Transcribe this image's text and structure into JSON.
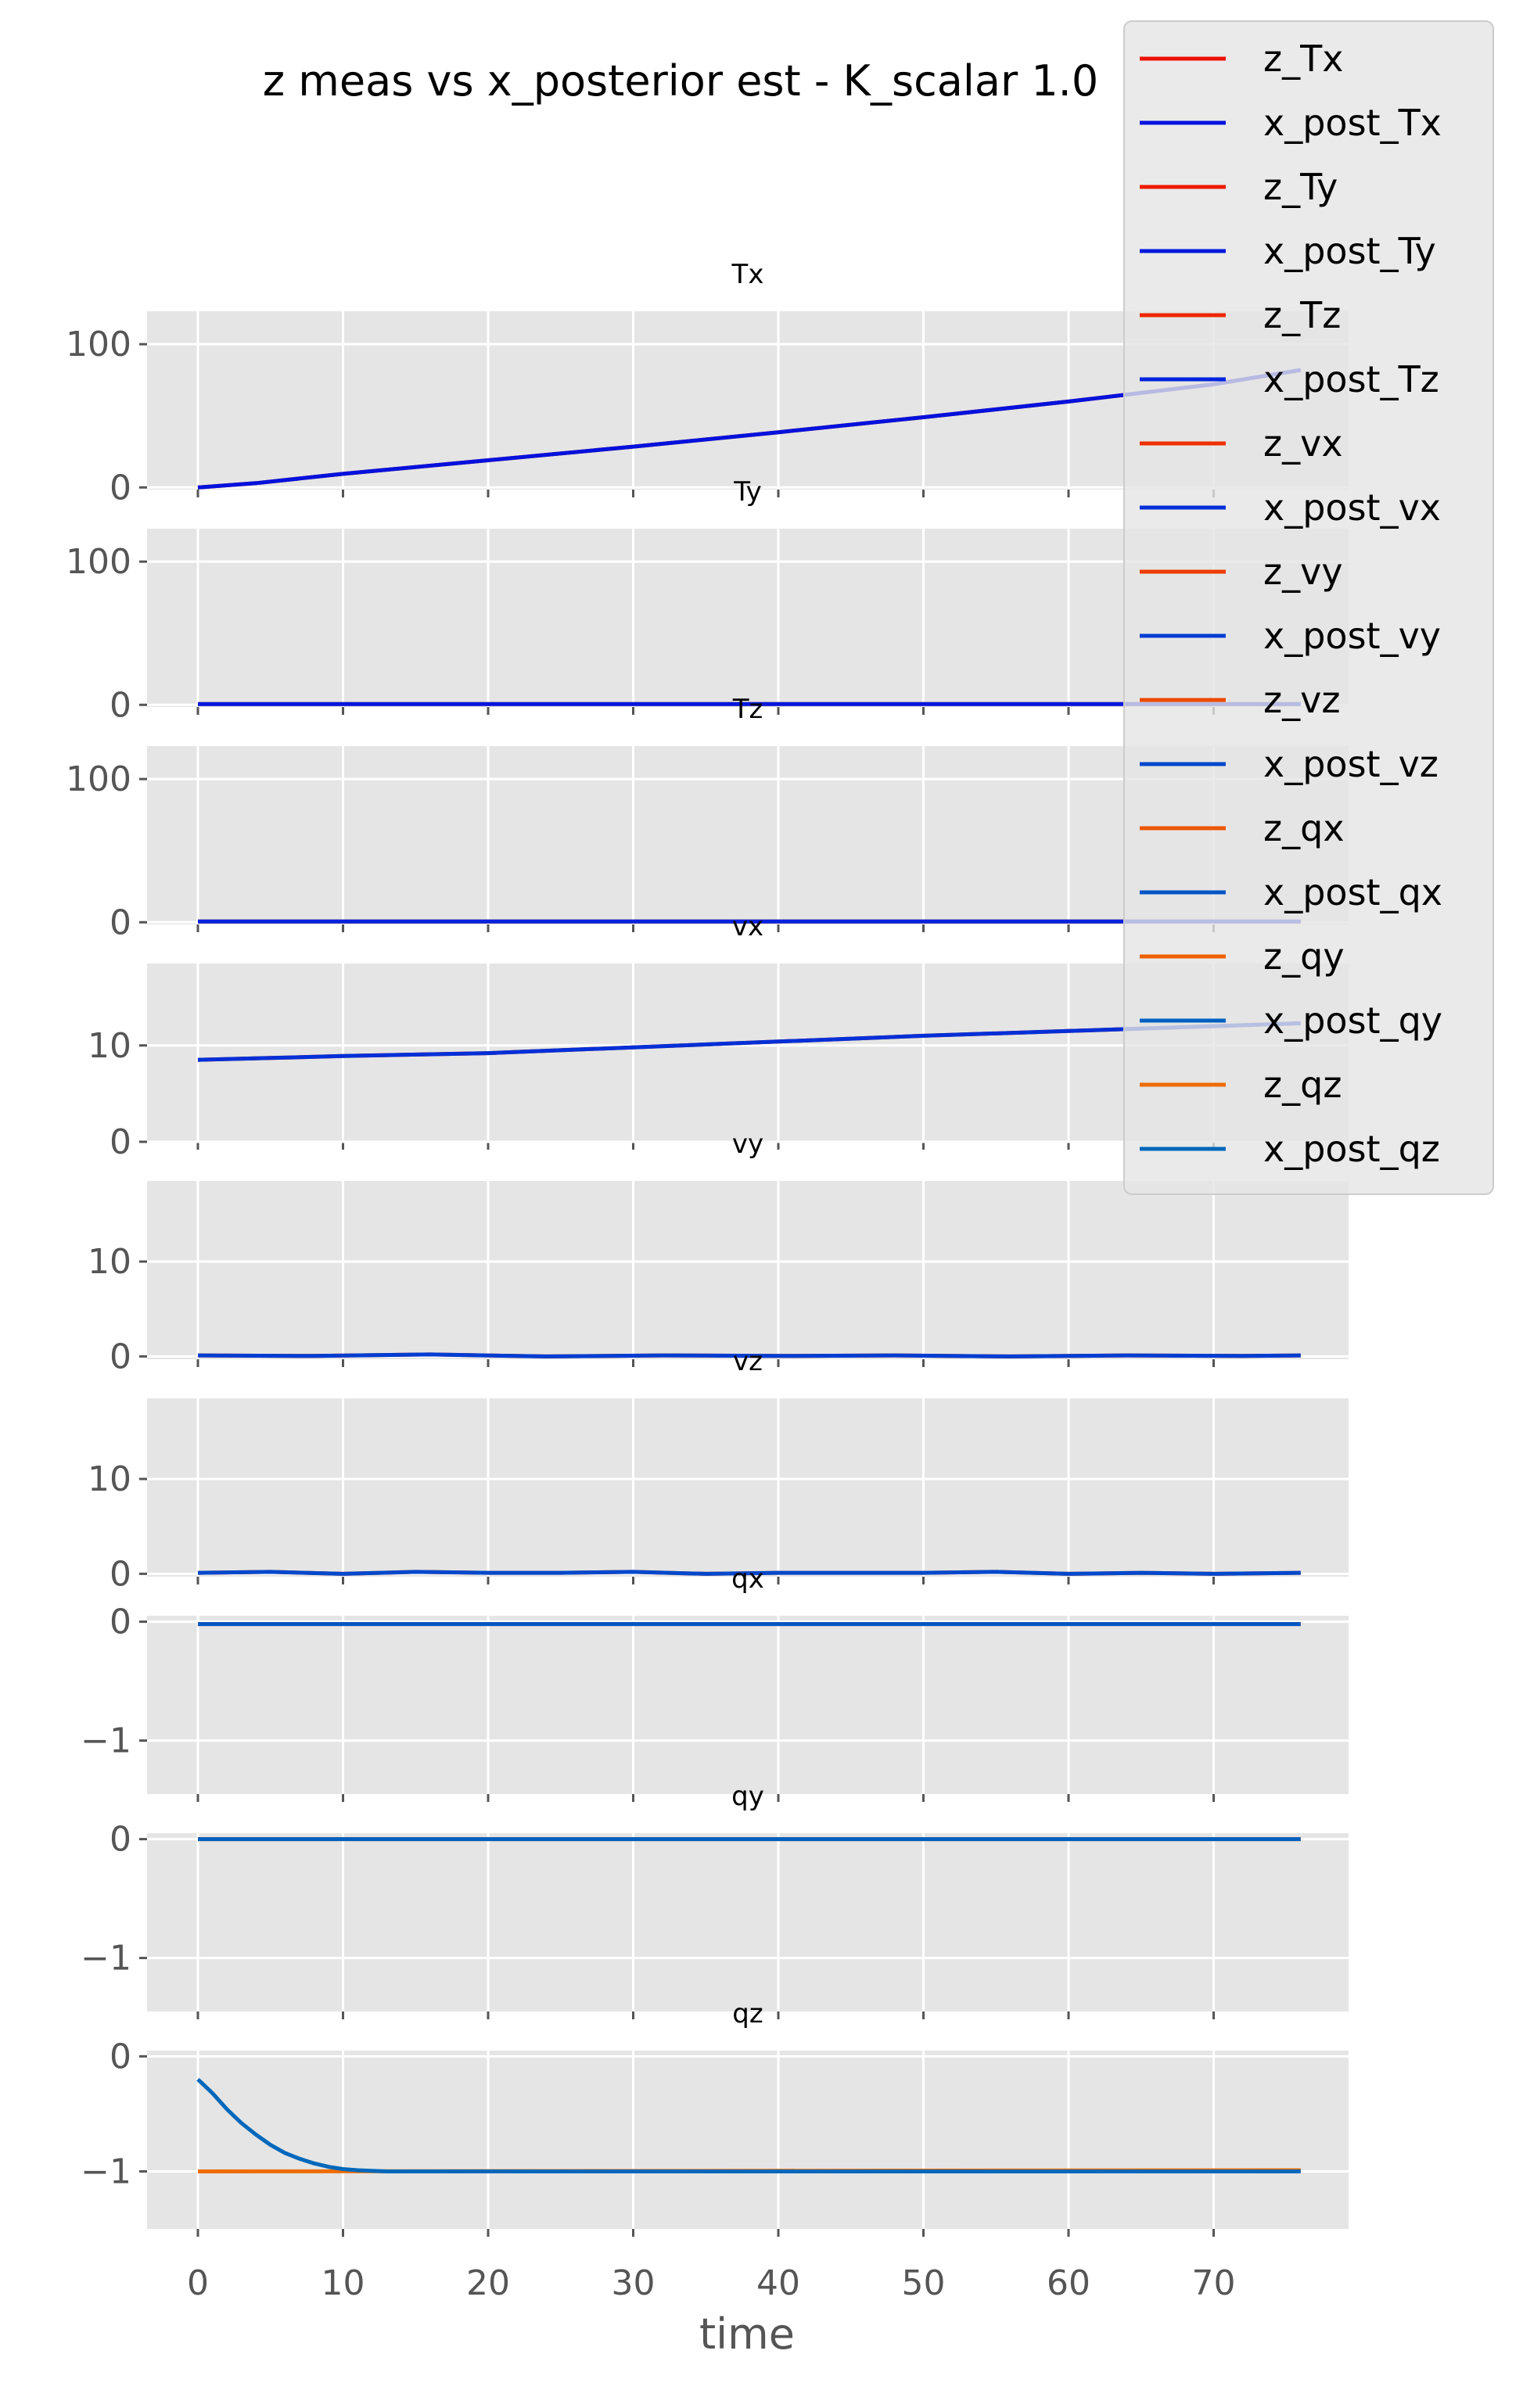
{
  "chart_data": {
    "type": "line",
    "title": "z meas vs x_posterior est - K_scalar 1.0",
    "xlabel": "time",
    "grid": true,
    "legend_placement": "top-right",
    "x_range": [
      0,
      76
    ],
    "xticks": [
      0,
      10,
      20,
      30,
      40,
      50,
      60,
      70
    ],
    "xtick_labels": [
      "0",
      "10",
      "20",
      "30",
      "40",
      "50",
      "60",
      "70"
    ],
    "legend": [
      {
        "label": "z_Tx",
        "color": "#ee1100"
      },
      {
        "label": "x_post_Tx",
        "color": "#0011dd"
      },
      {
        "label": "z_Ty",
        "color": "#ee1a00"
      },
      {
        "label": "x_post_Ty",
        "color": "#0018dd"
      },
      {
        "label": "z_Tz",
        "color": "#ee2500"
      },
      {
        "label": "x_post_Tz",
        "color": "#0022dd"
      },
      {
        "label": "z_vx",
        "color": "#ee3000"
      },
      {
        "label": "x_post_vx",
        "color": "#002fd8"
      },
      {
        "label": "z_vy",
        "color": "#ee3c00"
      },
      {
        "label": "x_post_vy",
        "color": "#003dd2"
      },
      {
        "label": "z_vz",
        "color": "#ee4a00"
      },
      {
        "label": "x_post_vz",
        "color": "#0048cc"
      },
      {
        "label": "z_qx",
        "color": "#ee5500"
      },
      {
        "label": "x_post_qx",
        "color": "#0055c5"
      },
      {
        "label": "z_qy",
        "color": "#ee6000"
      },
      {
        "label": "x_post_qy",
        "color": "#005fc0"
      },
      {
        "label": "z_qz",
        "color": "#ee6c00"
      },
      {
        "label": "x_post_qz",
        "color": "#0068bb"
      }
    ],
    "subplots": [
      {
        "title": "Tx",
        "ylim": [
          -1.5,
          123
        ],
        "yticks": [
          0,
          100
        ],
        "ytick_labels": [
          "0",
          "100"
        ],
        "series": [
          {
            "name": "z_Tx",
            "color": "#ee1100",
            "x": [
              0,
              4,
              10,
              20,
              30,
              40,
              50,
              60,
              70,
              76
            ],
            "y": [
              0,
              3,
              9.5,
              19,
              28.5,
              38.5,
              49,
              60,
              72,
              82
            ]
          },
          {
            "name": "x_post_Tx",
            "color": "#0011dd",
            "x": [
              0,
              4,
              10,
              20,
              30,
              40,
              50,
              60,
              70,
              76
            ],
            "y": [
              0,
              3,
              9.5,
              19,
              28.5,
              38.5,
              49,
              60,
              72,
              82
            ]
          }
        ]
      },
      {
        "title": "Ty",
        "ylim": [
          -1.5,
          123
        ],
        "yticks": [
          0,
          100
        ],
        "ytick_labels": [
          "0",
          "100"
        ],
        "series": [
          {
            "name": "z_Ty",
            "color": "#ee1a00",
            "x": [
              0,
              76
            ],
            "y": [
              0.5,
              0.5
            ]
          },
          {
            "name": "x_post_Ty",
            "color": "#0018dd",
            "x": [
              0,
              76
            ],
            "y": [
              0.5,
              0.5
            ]
          }
        ]
      },
      {
        "title": "Tz",
        "ylim": [
          -1.5,
          123
        ],
        "yticks": [
          0,
          100
        ],
        "ytick_labels": [
          "0",
          "100"
        ],
        "series": [
          {
            "name": "z_Tz",
            "color": "#ee2500",
            "x": [
              0,
              76
            ],
            "y": [
              0.5,
              0.5
            ]
          },
          {
            "name": "x_post_Tz",
            "color": "#0022dd",
            "x": [
              0,
              76
            ],
            "y": [
              0.5,
              0.5
            ]
          }
        ]
      },
      {
        "title": "vx",
        "ylim": [
          0,
          18.5
        ],
        "yticks": [
          0,
          10
        ],
        "ytick_labels": [
          "0",
          "10"
        ],
        "series": [
          {
            "name": "z_vx",
            "color": "#ee3000",
            "x": [
              0,
              5,
              10,
              20,
              30,
              40,
              50,
              60,
              70,
              76
            ],
            "y": [
              8.5,
              8.7,
              8.9,
              9.2,
              9.8,
              10.4,
              11,
              11.5,
              12,
              12.3
            ]
          },
          {
            "name": "x_post_vx",
            "color": "#002fd8",
            "x": [
              0,
              5,
              10,
              20,
              30,
              40,
              50,
              60,
              70,
              76
            ],
            "y": [
              8.5,
              8.7,
              8.9,
              9.2,
              9.8,
              10.4,
              11,
              11.5,
              12,
              12.3
            ]
          }
        ]
      },
      {
        "title": "vy",
        "ylim": [
          -0.3,
          18.5
        ],
        "yticks": [
          0,
          10
        ],
        "ytick_labels": [
          "0",
          "10"
        ],
        "series": [
          {
            "name": "z_vy",
            "color": "#ee3c00",
            "x": [
              0,
              8,
              16,
              24,
              32,
              40,
              48,
              56,
              64,
              72,
              76
            ],
            "y": [
              0.1,
              0.05,
              0.2,
              0.0,
              0.1,
              0.05,
              0.1,
              0.0,
              0.1,
              0.05,
              0.1
            ]
          },
          {
            "name": "x_post_vy",
            "color": "#003dd2",
            "x": [
              0,
              8,
              16,
              24,
              32,
              40,
              48,
              56,
              64,
              72,
              76
            ],
            "y": [
              0.1,
              0.05,
              0.2,
              0.0,
              0.1,
              0.05,
              0.1,
              0.0,
              0.1,
              0.05,
              0.1
            ]
          }
        ]
      },
      {
        "title": "vz",
        "ylim": [
          -0.3,
          18.5
        ],
        "yticks": [
          0,
          10
        ],
        "ytick_labels": [
          "0",
          "10"
        ],
        "series": [
          {
            "name": "z_vz",
            "color": "#ee4a00",
            "x": [
              0,
              5,
              10,
              15,
              20,
              25,
              30,
              35,
              40,
              45,
              50,
              55,
              60,
              65,
              70,
              76
            ],
            "y": [
              0.1,
              0.2,
              0.0,
              0.2,
              0.1,
              0.1,
              0.2,
              0.0,
              0.1,
              0.1,
              0.1,
              0.2,
              0.0,
              0.1,
              0.0,
              0.1
            ]
          },
          {
            "name": "x_post_vz",
            "color": "#0048cc",
            "x": [
              0,
              5,
              10,
              15,
              20,
              25,
              30,
              35,
              40,
              45,
              50,
              55,
              60,
              65,
              70,
              76
            ],
            "y": [
              0.1,
              0.2,
              0.0,
              0.2,
              0.1,
              0.1,
              0.2,
              0.0,
              0.1,
              0.1,
              0.1,
              0.2,
              0.0,
              0.1,
              0.0,
              0.1
            ]
          }
        ]
      },
      {
        "title": "qx",
        "ylim": [
          -1.45,
          0.05
        ],
        "yticks": [
          0,
          -1
        ],
        "ytick_labels": [
          "0",
          "−1"
        ],
        "series": [
          {
            "name": "z_qx",
            "color": "#ee5500",
            "x": [
              0,
              76
            ],
            "y": [
              -0.02,
              -0.02
            ]
          },
          {
            "name": "x_post_qx",
            "color": "#0055c5",
            "x": [
              0,
              76
            ],
            "y": [
              -0.02,
              -0.02
            ]
          }
        ]
      },
      {
        "title": "qy",
        "ylim": [
          -1.45,
          0.05
        ],
        "yticks": [
          0,
          -1
        ],
        "ytick_labels": [
          "0",
          "−1"
        ],
        "series": [
          {
            "name": "z_qy",
            "color": "#ee6000",
            "x": [
              0,
              76
            ],
            "y": [
              0.0,
              0.0
            ]
          },
          {
            "name": "x_post_qy",
            "color": "#005fc0",
            "x": [
              0,
              76
            ],
            "y": [
              0.0,
              0.0
            ]
          }
        ]
      },
      {
        "title": "qz",
        "ylim": [
          -1.5,
          0.05
        ],
        "yticks": [
          0,
          -1
        ],
        "ytick_labels": [
          "0",
          "−1"
        ],
        "series": [
          {
            "name": "z_qz",
            "color": "#ee6c00",
            "x": [
              0,
              76
            ],
            "y": [
              -1.0,
              -0.99
            ]
          },
          {
            "name": "x_post_qz",
            "color": "#0068bb",
            "x": [
              0,
              1,
              2,
              3,
              4,
              5,
              6,
              7,
              8,
              9,
              10,
              11,
              12,
              13,
              14,
              20,
              40,
              60,
              76
            ],
            "y": [
              -0.2,
              -0.32,
              -0.46,
              -0.58,
              -0.68,
              -0.77,
              -0.84,
              -0.89,
              -0.93,
              -0.96,
              -0.98,
              -0.99,
              -0.995,
              -1.0,
              -1.0,
              -1.0,
              -1.0,
              -1.0,
              -1.0
            ]
          }
        ]
      }
    ]
  }
}
